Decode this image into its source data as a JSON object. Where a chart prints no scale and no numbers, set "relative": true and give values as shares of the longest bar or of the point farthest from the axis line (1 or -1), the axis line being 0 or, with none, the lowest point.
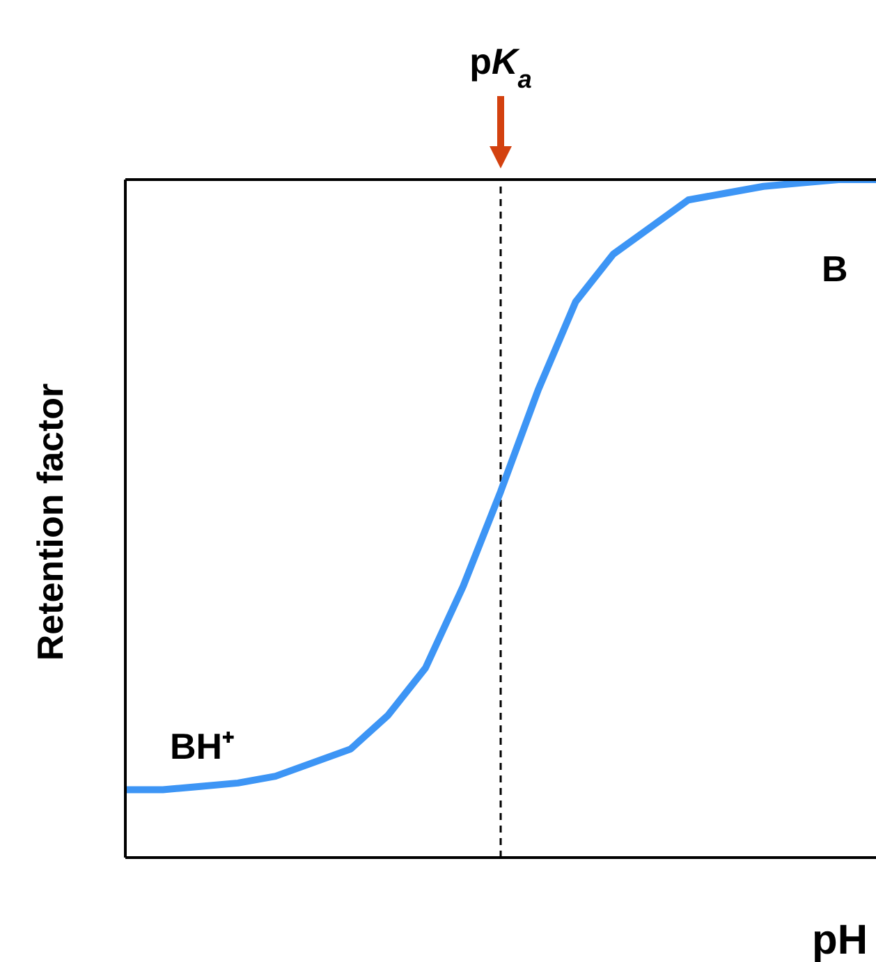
{
  "chart_data": {
    "type": "line",
    "relative": true,
    "xlabel": "pH",
    "ylabel": "Retention factor",
    "categories": [
      null,
      null,
      null,
      null,
      null,
      null,
      null,
      null,
      null,
      null,
      null,
      null,
      null,
      null,
      null,
      null,
      null,
      null,
      null,
      null,
      null
    ],
    "series": [
      {
        "color": "#3d95f5",
        "values": [
          0.1,
          0.1,
          0.105,
          0.11,
          0.12,
          0.14,
          0.16,
          0.21,
          0.28,
          0.4,
          0.54,
          0.69,
          0.82,
          0.89,
          0.93,
          0.97,
          0.98,
          0.99,
          0.995,
          1.0,
          1.0
        ]
      }
    ],
    "ref_lines": [
      {
        "axis": "x",
        "label": "pK$_{a}$",
        "color": "#000000",
        "line_style": "dashed"
      }
    ],
    "annotations": [
      "BH⁺",
      "B"
    ],
    "marker": "none",
    "line_style": "solid"
  }
}
